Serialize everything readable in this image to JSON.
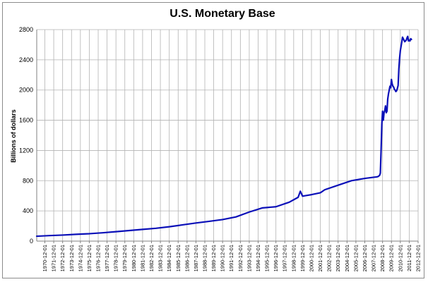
{
  "chart_data": {
    "type": "line",
    "title": "U.S. Monetary Base",
    "xlabel": "",
    "ylabel": "Billions of dollars",
    "ylim": [
      0,
      2800
    ],
    "yticks": [
      0,
      400,
      800,
      1200,
      1600,
      2000,
      2400,
      2800
    ],
    "xticks": [
      "1970-12-01",
      "1971-12-01",
      "1972-12-01",
      "1973-12-01",
      "1974-12-01",
      "1975-12-01",
      "1976-12-01",
      "1977-12-01",
      "1978-12-01",
      "1979-12-01",
      "1980-12-01",
      "1981-12-01",
      "1982-12-01",
      "1983-12-01",
      "1984-12-01",
      "1985-12-01",
      "1986-12-01",
      "1987-12-01",
      "1988-12-01",
      "1989-12-01",
      "1990-12-01",
      "1991-12-01",
      "1992-12-01",
      "1993-12-01",
      "1994-12-01",
      "1995-12-01",
      "1996-12-01",
      "1997-12-01",
      "1998-12-01",
      "1999-12-01",
      "2000-12-01",
      "2001-12-01",
      "2002-12-01",
      "2003-12-01",
      "2004-12-01",
      "2005-12-01",
      "2006-12-01",
      "2007-12-01",
      "2008-12-01",
      "2009-12-01",
      "2010-12-01",
      "2011-12-01",
      "2012-12-01"
    ],
    "grid": true,
    "line_color": "#0b10b8",
    "series": [
      {
        "x": [
          "1970-01-01",
          "1971-06-01",
          "1972-12-01",
          "1974-06-01",
          "1975-12-01",
          "1977-06-01",
          "1978-12-01",
          "1980-06-01",
          "1981-12-01",
          "1983-06-01",
          "1984-12-01",
          "1986-06-01",
          "1987-12-01",
          "1989-06-01",
          "1990-12-01",
          "1992-06-01",
          "1993-12-01",
          "1995-06-01",
          "1996-12-01",
          "1998-06-01",
          "1999-06-01",
          "1999-09-01",
          "1999-12-01",
          "2000-03-01",
          "2000-12-01",
          "2001-12-01",
          "2002-06-01",
          "2003-12-01",
          "2005-06-01",
          "2006-12-01",
          "2007-12-01",
          "2008-04-01",
          "2008-06-01",
          "2008-08-01",
          "2008-09-01",
          "2008-10-01",
          "2008-11-01",
          "2008-12-01",
          "2009-01-01",
          "2009-02-01",
          "2009-03-01",
          "2009-04-01",
          "2009-05-01",
          "2009-06-01",
          "2009-07-01",
          "2009-08-01",
          "2009-09-01",
          "2009-10-01",
          "2009-11-01",
          "2009-12-01",
          "2010-01-01",
          "2010-02-01",
          "2010-03-01",
          "2010-04-01",
          "2010-05-01",
          "2010-06-01",
          "2010-07-01",
          "2010-08-01",
          "2010-09-01",
          "2010-10-01",
          "2010-11-01",
          "2010-12-01",
          "2011-01-01",
          "2011-02-01",
          "2011-03-01",
          "2011-04-01",
          "2011-05-01",
          "2011-06-01",
          "2011-07-01",
          "2011-08-01",
          "2011-09-01",
          "2011-10-01",
          "2011-11-01",
          "2011-12-01",
          "2012-01-01",
          "2012-02-01",
          "2012-03-01"
        ],
        "y": [
          65,
          73,
          80,
          90,
          98,
          110,
          125,
          140,
          155,
          170,
          190,
          215,
          240,
          262,
          285,
          320,
          385,
          440,
          455,
          515,
          580,
          660,
          595,
          600,
          615,
          640,
          680,
          740,
          800,
          830,
          845,
          850,
          855,
          870,
          900,
          1200,
          1550,
          1720,
          1600,
          1700,
          1730,
          1790,
          1700,
          1720,
          1880,
          1950,
          2000,
          2050,
          2030,
          2140,
          2080,
          2050,
          2040,
          2010,
          2000,
          1980,
          1990,
          2020,
          2060,
          2280,
          2420,
          2520,
          2580,
          2640,
          2700,
          2680,
          2660,
          2640,
          2650,
          2660,
          2690,
          2710,
          2650,
          2660,
          2650,
          2680,
          2670
        ]
      }
    ]
  }
}
